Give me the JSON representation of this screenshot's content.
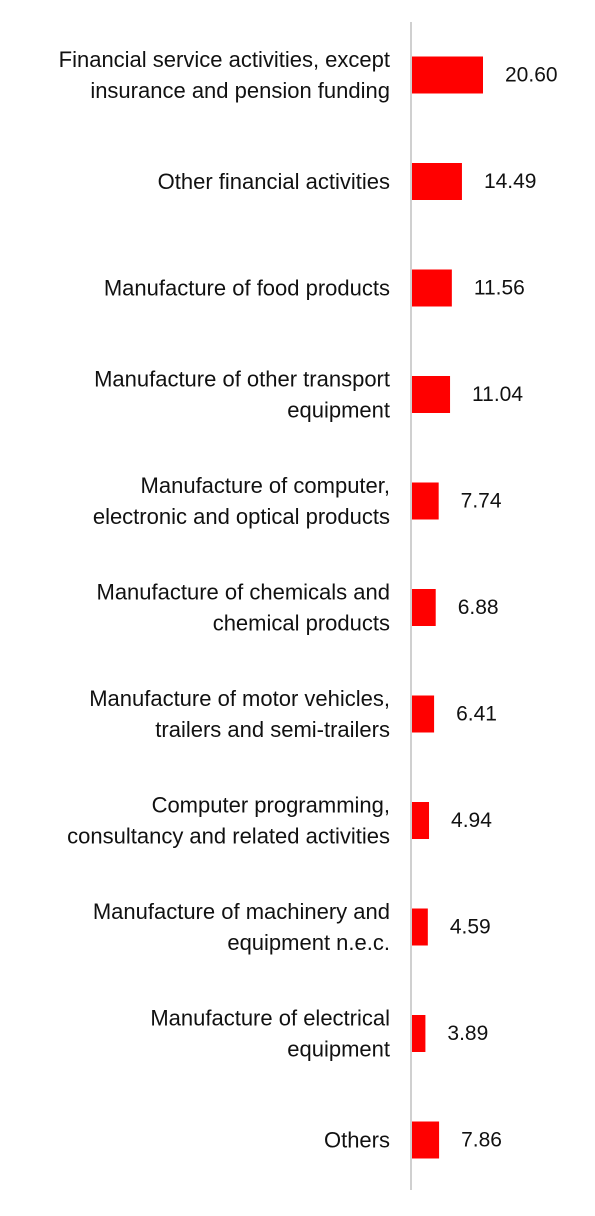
{
  "chart_data": {
    "type": "bar",
    "orientation": "horizontal",
    "categories": [
      [
        "Financial service activities, except",
        "insurance and pension funding"
      ],
      [
        "Other financial activities"
      ],
      [
        "Manufacture of food products"
      ],
      [
        "Manufacture of other transport",
        "equipment"
      ],
      [
        "Manufacture of computer,",
        "electronic and optical products"
      ],
      [
        "Manufacture of chemicals and",
        "chemical products"
      ],
      [
        "Manufacture of motor vehicles,",
        "trailers and semi-trailers"
      ],
      [
        "Computer programming,",
        "consultancy and related activities"
      ],
      [
        "Manufacture of machinery and",
        "equipment n.e.c."
      ],
      [
        "Manufacture of electrical",
        "equipment"
      ],
      [
        "Others"
      ]
    ],
    "values": [
      20.6,
      14.49,
      11.56,
      11.04,
      7.74,
      6.88,
      6.41,
      4.94,
      4.59,
      3.89,
      7.86
    ],
    "value_labels": [
      "20.60",
      "14.49",
      "11.56",
      "11.04",
      "7.74",
      "6.88",
      "6.41",
      "4.94",
      "4.59",
      "3.89",
      "7.86"
    ],
    "bar_color": "#ff0000",
    "axis_color": "#d0d0d0",
    "title": "",
    "xlabel": "",
    "ylabel": "",
    "xlim": [
      0,
      20.6
    ],
    "grid": false,
    "legend": false,
    "data_labels": true
  }
}
